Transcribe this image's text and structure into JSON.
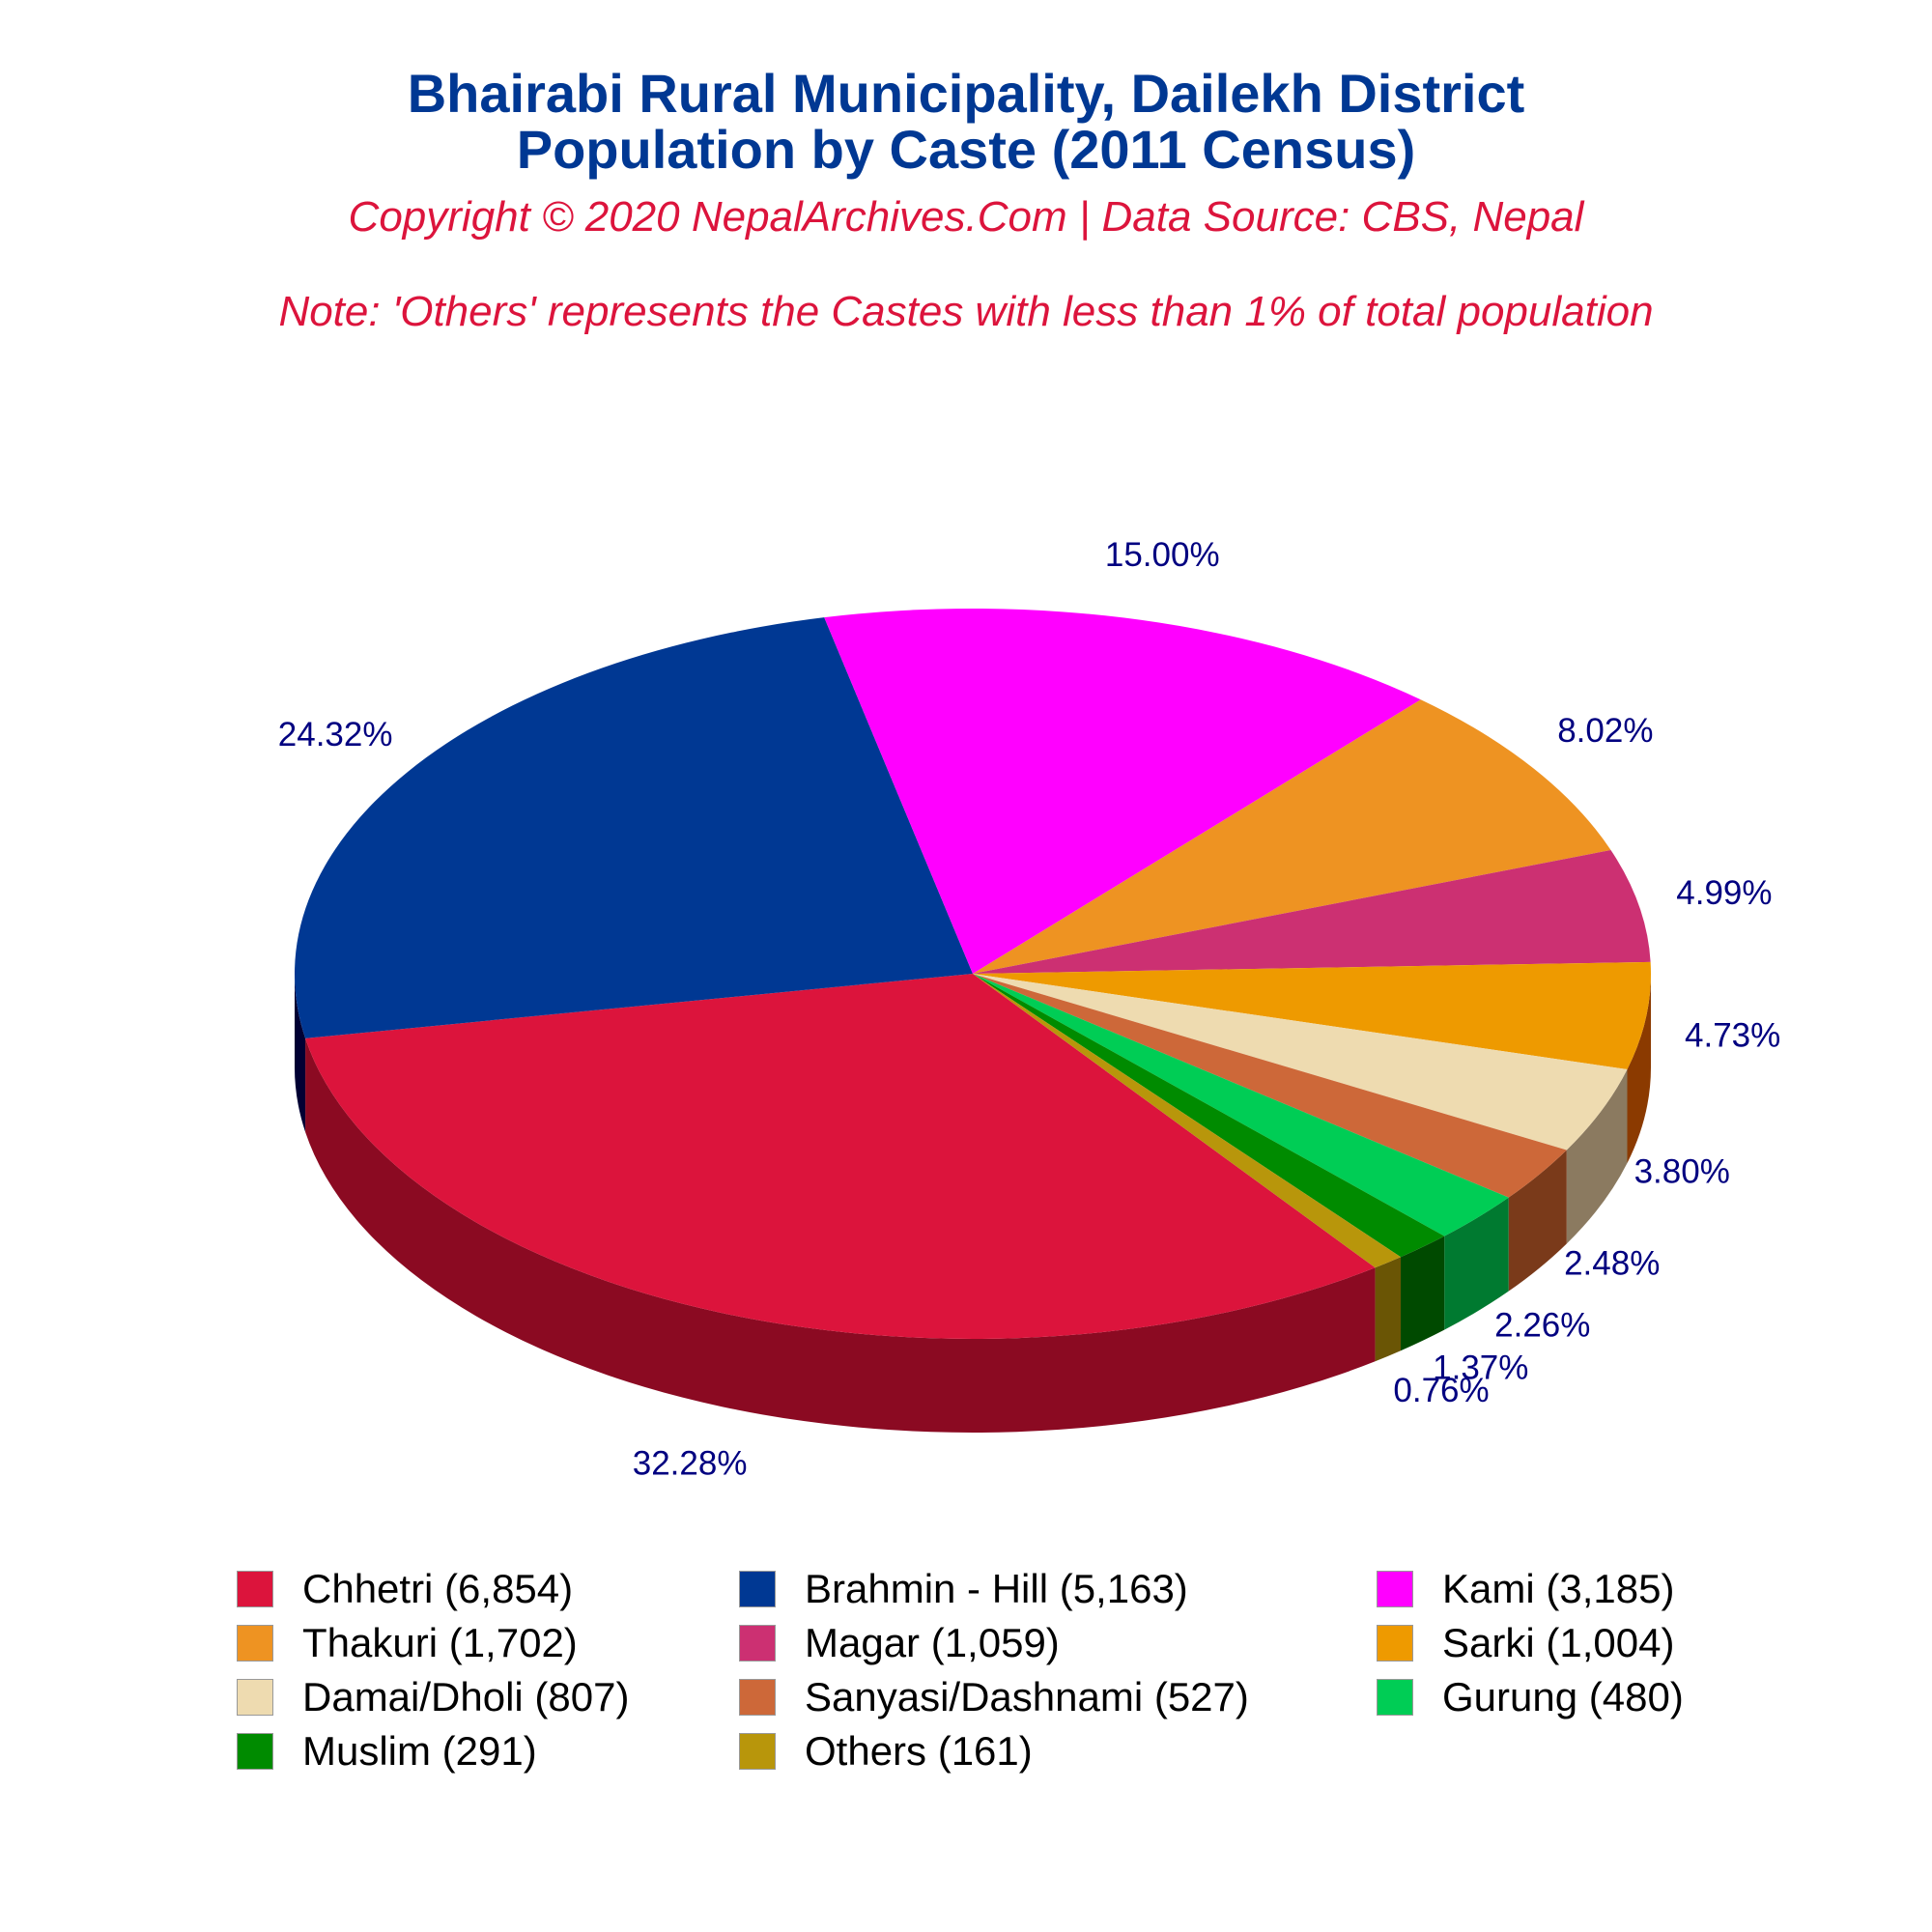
{
  "title_line1": "Bhairabi Rural Municipality, Dailekh District",
  "title_line2": "Population by Caste (2011 Census)",
  "copyright": "Copyright © 2020 NepalArchives.Com | Data Source: CBS, Nepal",
  "note": "Note: 'Others' represents the Castes with less than 1% of total population",
  "chart_data": {
    "type": "pie",
    "title": "Bhairabi Rural Municipality, Dailekh District Population by Caste (2011 Census)",
    "legend_position": "bottom",
    "slices": [
      {
        "label": "Chhetri (6,854)",
        "value": 6854,
        "pct": "32.28%",
        "color": "#dc143c",
        "side": "#8b0a22"
      },
      {
        "label": "Brahmin - Hill (5,163)",
        "value": 5163,
        "pct": "24.32%",
        "color": "#003893",
        "side": "#000033"
      },
      {
        "label": "Kami (3,185)",
        "value": 3185,
        "pct": "15.00%",
        "color": "#ff00ff",
        "side": "#a300a3"
      },
      {
        "label": "Thakuri (1,702)",
        "value": 1702,
        "pct": "8.02%",
        "color": "#ee9322",
        "side": "#8b3300"
      },
      {
        "label": "Magar (1,059)",
        "value": 1059,
        "pct": "4.99%",
        "color": "#cc3072",
        "side": "#6e0020"
      },
      {
        "label": "Sarki (1,004)",
        "value": 1004,
        "pct": "4.73%",
        "color": "#ee9a00",
        "side": "#8b3a00"
      },
      {
        "label": "Damai/Dholi (807)",
        "value": 807,
        "pct": "3.80%",
        "color": "#eedbb0",
        "side": "#8b7a60"
      },
      {
        "label": "Sanyasi/Dashnami (527)",
        "value": 527,
        "pct": "2.48%",
        "color": "#cd6839",
        "side": "#7a3a1a"
      },
      {
        "label": "Gurung (480)",
        "value": 480,
        "pct": "2.26%",
        "color": "#00cd55",
        "side": "#007a30"
      },
      {
        "label": "Muslim (291)",
        "value": 291,
        "pct": "1.37%",
        "color": "#008b00",
        "side": "#004a00"
      },
      {
        "label": "Others (161)",
        "value": 161,
        "pct": "0.76%",
        "color": "#b8960b",
        "side": "#6a5505"
      }
    ]
  }
}
